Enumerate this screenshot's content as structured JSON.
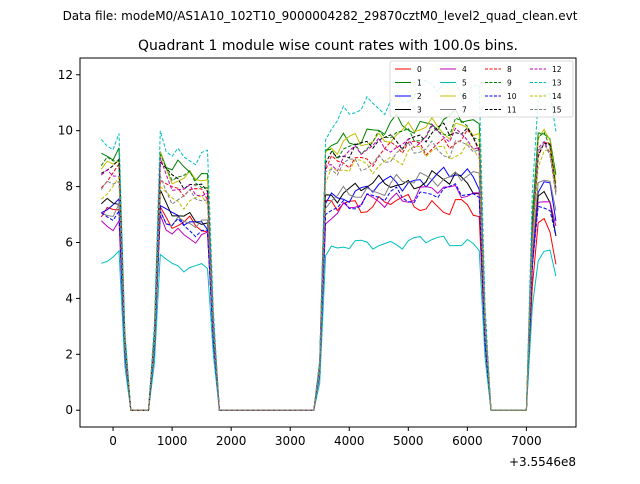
{
  "chart_data": {
    "type": "line",
    "suptitle": "Data file: modeM0/AS1A10_102T10_9000004282_29870cztM0_level2_quad_clean.evt",
    "title": "Quadrant 1 module wise count rates with 100.0s bins.",
    "xlabel": "",
    "ylabel": "",
    "x_offset_label": "+3.5546e8",
    "xlim": [
      -560,
      7840
    ],
    "ylim": [
      -0.6,
      12.6
    ],
    "xticks": [
      0,
      1000,
      2000,
      3000,
      4000,
      5000,
      6000,
      7000
    ],
    "yticks": [
      0,
      2,
      4,
      6,
      8,
      10,
      12
    ],
    "grid": false,
    "legend_position": "top-right",
    "x": [
      -200,
      -100,
      0,
      100,
      200,
      300,
      400,
      500,
      600,
      700,
      800,
      900,
      1000,
      1100,
      1200,
      1300,
      1400,
      1500,
      1600,
      1700,
      1800,
      1900,
      2000,
      2100,
      2200,
      2300,
      2400,
      2500,
      2600,
      2700,
      2800,
      2900,
      3000,
      3100,
      3200,
      3300,
      3400,
      3500,
      3600,
      3700,
      3800,
      3900,
      4000,
      4100,
      4200,
      4300,
      4400,
      4500,
      4600,
      4700,
      4800,
      4900,
      5000,
      5100,
      5200,
      5300,
      5400,
      5500,
      5600,
      5700,
      5800,
      5900,
      6000,
      6100,
      6200,
      6300,
      6400,
      6500,
      6600,
      6700,
      6800,
      6900,
      7000,
      7100,
      7200,
      7300,
      7400,
      7500
    ],
    "profile": [
      0.96,
      0.97,
      0.97,
      1.0,
      0.28,
      0.0,
      0.0,
      0.0,
      0.0,
      0.3,
      1.0,
      0.95,
      0.92,
      0.93,
      0.91,
      0.92,
      0.9,
      0.91,
      0.9,
      0.35,
      0.0,
      0.0,
      0.0,
      0.0,
      0.0,
      0.0,
      0.0,
      0.0,
      0.0,
      0.0,
      0.0,
      0.0,
      0.0,
      0.0,
      0.0,
      0.0,
      0.0,
      0.18,
      1.0,
      1.03,
      1.02,
      1.05,
      1.04,
      1.06,
      1.05,
      1.07,
      1.06,
      1.08,
      1.07,
      1.09,
      1.1,
      1.08,
      1.1,
      1.09,
      1.11,
      1.1,
      1.12,
      1.11,
      1.12,
      1.1,
      1.13,
      1.11,
      1.12,
      1.1,
      1.08,
      0.35,
      0.0,
      0.0,
      0.0,
      0.0,
      0.0,
      0.0,
      0.0,
      0.72,
      1.05,
      1.08,
      1.06,
      0.9
    ],
    "series": [
      {
        "name": "0",
        "color": "#ff0000",
        "dash": "solid",
        "level": 7.2,
        "jitter": 0.35,
        "trend": -0.12
      },
      {
        "name": "1",
        "color": "#008000",
        "dash": "solid",
        "level": 9.3,
        "jitter": 0.35,
        "trend": 0.0
      },
      {
        "name": "2",
        "color": "#0000ff",
        "dash": "solid",
        "level": 7.4,
        "jitter": 0.3,
        "trend": 0.02
      },
      {
        "name": "3",
        "color": "#000000",
        "dash": "solid",
        "level": 7.6,
        "jitter": 0.3,
        "trend": -0.04
      },
      {
        "name": "4",
        "color": "#bf00bf",
        "dash": "solid",
        "level": 6.9,
        "jitter": 0.3,
        "trend": 0.03
      },
      {
        "name": "5",
        "color": "#00bfbf",
        "dash": "solid",
        "level": 5.65,
        "jitter": 0.22,
        "trend": -0.04
      },
      {
        "name": "6",
        "color": "#bfbf00",
        "dash": "solid",
        "level": 9.1,
        "jitter": 0.35,
        "trend": 0.0
      },
      {
        "name": "7",
        "color": "#808080",
        "dash": "solid",
        "level": 7.3,
        "jitter": 0.3,
        "trend": 0.04
      },
      {
        "name": "8",
        "color": "#ff0000",
        "dash": "dashed",
        "level": 8.5,
        "jitter": 0.35,
        "trend": 0.02
      },
      {
        "name": "9",
        "color": "#008000",
        "dash": "dashed",
        "level": 9.0,
        "jitter": 0.35,
        "trend": 0.0
      },
      {
        "name": "10",
        "color": "#0000ff",
        "dash": "dashed",
        "level": 7.1,
        "jitter": 0.3,
        "trend": -0.02
      },
      {
        "name": "11",
        "color": "#000000",
        "dash": "dashed",
        "level": 8.9,
        "jitter": 0.3,
        "trend": 0.0
      },
      {
        "name": "12",
        "color": "#bf00bf",
        "dash": "dashed",
        "level": 8.7,
        "jitter": 0.35,
        "trend": 0.02
      },
      {
        "name": "13",
        "color": "#00bfbf",
        "dash": "dashed",
        "level": 10.0,
        "jitter": 0.4,
        "trend": 0.08
      },
      {
        "name": "14",
        "color": "#bfbf00",
        "dash": "dashed",
        "level": 8.2,
        "jitter": 0.35,
        "trend": 0.03
      },
      {
        "name": "15",
        "color": "#808080",
        "dash": "dashed",
        "level": 8.3,
        "jitter": 0.35,
        "trend": 0.03
      }
    ]
  }
}
